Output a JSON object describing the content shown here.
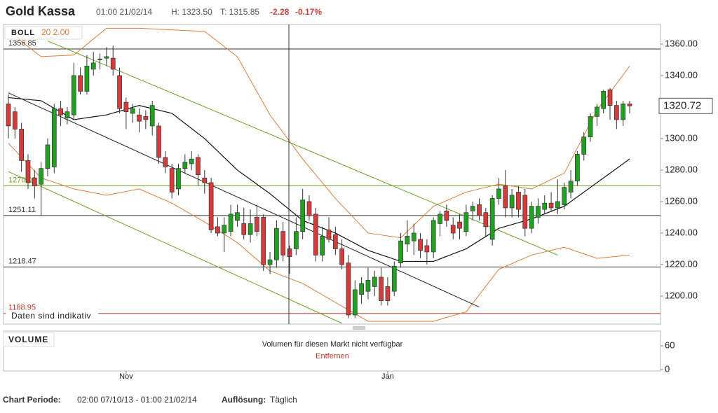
{
  "header": {
    "title": "Gold Kassa",
    "time": "01:00 21/02/14",
    "high": "H: 1323.50",
    "low": "T: 1315.85",
    "change": "-2.28",
    "change_pct": "-0.17%"
  },
  "notice": "Daten sind indikativ",
  "footer": {
    "period_label": "Chart Periode:",
    "period": "02:00 07/10/13 - 01:00 21/02/14",
    "resolution_label": "Auflösung:",
    "resolution": "Täglich"
  },
  "chart_data": {
    "type": "candlestick",
    "categories": [
      null,
      null,
      null,
      null,
      null,
      null,
      null,
      null,
      null,
      null,
      null,
      null,
      null,
      null,
      null,
      null,
      null,
      null,
      "Nov",
      null,
      null,
      null,
      null,
      null,
      null,
      null,
      null,
      null,
      null,
      null,
      null,
      null,
      null,
      null,
      null,
      null,
      null,
      null,
      null,
      null,
      null,
      null,
      null,
      null,
      null,
      null,
      null,
      null,
      null,
      null,
      null,
      null,
      null,
      null,
      null,
      null,
      null,
      null,
      "Jan",
      null,
      null,
      null,
      null,
      null,
      null,
      null,
      null,
      null,
      null,
      null,
      null,
      null,
      null,
      null,
      null,
      null,
      null,
      null,
      null,
      null,
      null,
      null,
      null,
      null,
      null,
      null,
      null,
      null,
      null,
      null,
      null,
      null,
      null,
      null,
      null,
      null
    ],
    "open": [
      1322,
      1317,
      1306,
      1286,
      1275,
      1271,
      1281,
      1282,
      1319,
      1313,
      1315,
      1340,
      1330,
      1344,
      1350,
      1351,
      1351,
      1340,
      1323,
      1316,
      1315,
      1314,
      1308,
      1308,
      1288,
      1281,
      1268,
      1281,
      1284,
      1288,
      1275,
      1272,
      1244,
      1240,
      1241,
      1248,
      1246,
      1239,
      1250,
      1250,
      1220,
      1223,
      1241,
      1230,
      1230,
      1241,
      1260,
      1252,
      1226,
      1242,
      1239,
      1230,
      1221,
      1188,
      1201,
      1203,
      1206,
      1212,
      1206,
      1203,
      1221,
      1233,
      1235,
      1236,
      1232,
      1228,
      1246,
      1254,
      1245,
      1247,
      1241,
      1254,
      1258,
      1253,
      1236,
      1262,
      1270,
      1256,
      1266,
      1264,
      1243,
      1250,
      1255,
      1259,
      1256,
      1258,
      1266,
      1273,
      1290,
      1301,
      1314,
      1319,
      1331,
      1321,
      1312,
      1322
    ],
    "high": [
      1328,
      1320,
      1310,
      1290,
      1280,
      1285,
      1300,
      1322,
      1324,
      1320,
      1348,
      1345,
      1353,
      1355,
      1354,
      1358,
      1359,
      1345,
      1326,
      1322,
      1319,
      1318,
      1324,
      1310,
      1292,
      1284,
      1284,
      1290,
      1292,
      1290,
      1280,
      1275,
      1250,
      1250,
      1258,
      1258,
      1256,
      1255,
      1258,
      1252,
      1228,
      1248,
      1247,
      1232,
      1250,
      1268,
      1264,
      1256,
      1244,
      1250,
      1244,
      1236,
      1226,
      1210,
      1212,
      1218,
      1216,
      1218,
      1212,
      1222,
      1240,
      1248,
      1246,
      1240,
      1236,
      1250,
      1254,
      1258,
      1250,
      1252,
      1258,
      1260,
      1262,
      1256,
      1264,
      1275,
      1280,
      1268,
      1270,
      1268,
      1260,
      1262,
      1264,
      1266,
      1274,
      1272,
      1280,
      1292,
      1304,
      1316,
      1322,
      1331,
      1332,
      1324,
      1324,
      1324
    ],
    "low": [
      1300,
      1300,
      1279,
      1268,
      1262,
      1251,
      1276,
      1278,
      1308,
      1309,
      1312,
      1328,
      1328,
      1340,
      1344,
      1346,
      1340,
      1316,
      1306,
      1310,
      1304,
      1306,
      1302,
      1284,
      1278,
      1262,
      1264,
      1278,
      1280,
      1270,
      1265,
      1240,
      1238,
      1228,
      1238,
      1244,
      1236,
      1234,
      1238,
      1216,
      1214,
      1218,
      1222,
      1214,
      1226,
      1236,
      1248,
      1222,
      1222,
      1234,
      1226,
      1217,
      1186,
      1186,
      1195,
      1198,
      1200,
      1194,
      1194,
      1200,
      1218,
      1228,
      1226,
      1224,
      1220,
      1224,
      1238,
      1244,
      1236,
      1236,
      1238,
      1248,
      1248,
      1238,
      1232,
      1258,
      1250,
      1250,
      1250,
      1238,
      1240,
      1246,
      1252,
      1254,
      1252,
      1255,
      1262,
      1270,
      1286,
      1298,
      1308,
      1316,
      1312,
      1306,
      1308,
      1316
    ],
    "close": [
      1308,
      1306,
      1286,
      1272,
      1270,
      1281,
      1296,
      1319,
      1315,
      1317,
      1340,
      1330,
      1346,
      1348,
      1350.5,
      1352,
      1344,
      1319,
      1317,
      1319,
      1311,
      1312,
      1321,
      1288,
      1282,
      1266,
      1281,
      1285,
      1287,
      1277,
      1272,
      1242,
      1240,
      1245,
      1252,
      1253,
      1239,
      1246,
      1241,
      1220,
      1223,
      1243,
      1226,
      1225,
      1241,
      1261,
      1251,
      1226,
      1238,
      1236,
      1230,
      1220,
      1188,
      1204,
      1208,
      1210,
      1212,
      1197,
      1197,
      1219,
      1235,
      1238,
      1240,
      1229,
      1228,
      1248,
      1252,
      1248,
      1240,
      1243,
      1253,
      1257,
      1251,
      1244,
      1262,
      1268,
      1256,
      1264,
      1255,
      1243,
      1257,
      1257,
      1259,
      1256,
      1260,
      1269,
      1273,
      1290,
      1301,
      1314,
      1320,
      1330,
      1321,
      1312,
      1322,
      1320.72
    ],
    "up_color": "#1fa21f",
    "down_color": "#d63a3a",
    "ylim": [
      1182.2,
      1372.4
    ],
    "yticks": [
      {
        "value": 1200,
        "label": "1200.00"
      },
      {
        "value": 1220,
        "label": "1220.00"
      },
      {
        "value": 1240,
        "label": "1240.00"
      },
      {
        "value": 1260,
        "label": "1260.00"
      },
      {
        "value": 1280,
        "label": "1280.00"
      },
      {
        "value": 1300,
        "label": "1300.00"
      },
      {
        "value": 1320,
        "label": "1320.00"
      },
      {
        "value": 1340,
        "label": "1340.00"
      },
      {
        "value": 1360,
        "label": "1360.00"
      }
    ],
    "last": {
      "value": 1320.72,
      "label": "1320.72"
    },
    "levels": [
      {
        "value": 1356.85,
        "label": "1356.85",
        "color": "#333333"
      },
      {
        "value": 1270,
        "label": "1270.00",
        "color": "#6aa121"
      },
      {
        "value": 1251.11,
        "label": "1251.11",
        "color": "#333333"
      },
      {
        "value": 1218.47,
        "label": "1218.47",
        "color": "#333333"
      },
      {
        "value": 1188.95,
        "label": "1188.95",
        "color": "#c0392b"
      }
    ],
    "indicator": {
      "name": "BOLL",
      "params": "20 2.00",
      "color": "#e07b39",
      "mid_color": "#111111",
      "x": [
        0,
        5,
        10,
        15,
        20,
        25,
        30,
        35,
        40,
        45,
        50,
        55,
        60,
        65,
        70,
        75,
        80,
        85,
        90,
        95
      ],
      "upper": [
        1368,
        1352,
        1353,
        1370,
        1370,
        1369,
        1368,
        1352,
        1315,
        1287,
        1262,
        1240,
        1237,
        1257,
        1266,
        1271,
        1268,
        1278,
        1318,
        1346
      ],
      "middle": [
        1326,
        1324,
        1312,
        1315,
        1321,
        1316,
        1300,
        1280,
        1265,
        1248,
        1240,
        1229,
        1222,
        1222,
        1230,
        1243,
        1249,
        1257,
        1272,
        1287
      ],
      "lower": [
        1297,
        1275,
        1268,
        1264,
        1268,
        1259,
        1247,
        1234,
        1216,
        1208,
        1196,
        1184,
        1184,
        1184,
        1190,
        1217,
        1226,
        1231,
        1224,
        1226
      ]
    },
    "trendlines": [
      {
        "color": "#222222",
        "x": [
          0,
          72
        ],
        "values": [
          1329,
          1193
        ]
      },
      {
        "color": "#6aa121",
        "x": [
          6,
          84
        ],
        "values": [
          1362,
          1226
        ]
      },
      {
        "color": "#6aa121",
        "x": [
          0,
          51
        ],
        "values": [
          1279,
          1182.7
        ]
      }
    ],
    "volume": {
      "title": "VOLUME",
      "message": "Volumen für diesen Markt nicht verfügbar",
      "action": "Entfernen",
      "ylim": [
        0,
        97
      ],
      "yticks": [
        0,
        60
      ]
    }
  }
}
